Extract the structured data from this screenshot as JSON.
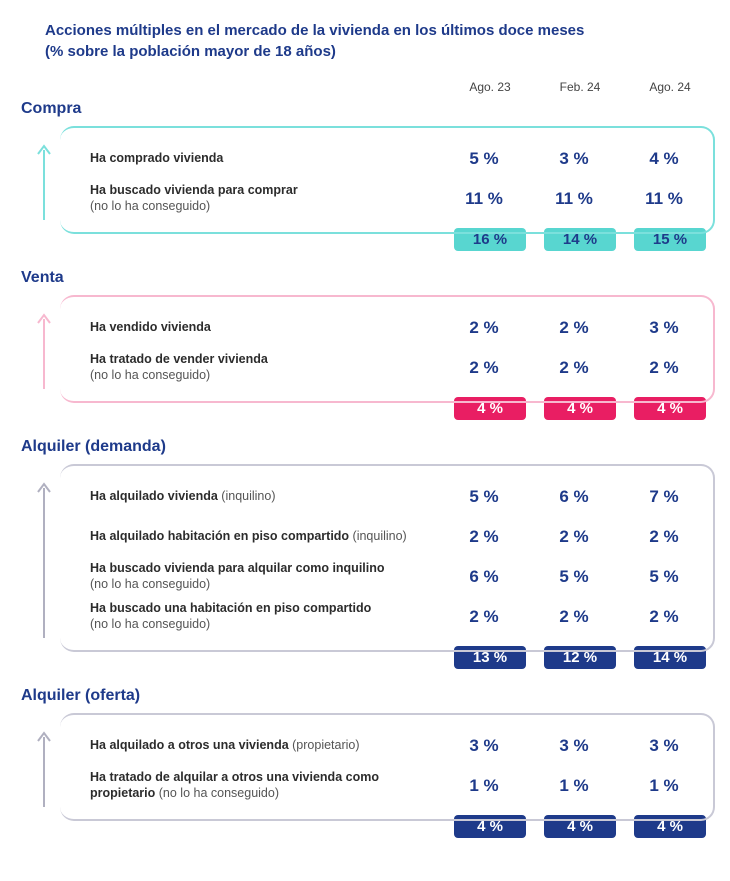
{
  "title_line1": "Acciones múltiples en el mercado de la vivienda en los últimos doce meses",
  "title_line2": "(% sobre la población mayor de 18 años)",
  "columns": [
    "Ago. 23",
    "Feb. 24",
    "Ago. 24"
  ],
  "colors": {
    "title": "#1e3a8a",
    "value_text": "#1e3a8a"
  },
  "sections": [
    {
      "key": "compra",
      "title": "Compra",
      "title_color": "#1e3a8a",
      "border_color": "#7be0dc",
      "arrow_color": "#7be0dc",
      "total_bg": "#58d6d0",
      "total_text": "#1e3a8a",
      "rows": [
        {
          "label": "Ha comprado vivienda",
          "sub": "",
          "vals": [
            "5 %",
            "3 %",
            "4 %"
          ]
        },
        {
          "label": "Ha buscado vivienda para comprar",
          "sub": "(no lo ha conseguido)",
          "vals": [
            "11 %",
            "11 %",
            "11 %"
          ]
        }
      ],
      "totals": [
        "16 %",
        "14 %",
        "15 %"
      ]
    },
    {
      "key": "venta",
      "title": "Venta",
      "title_color": "#1e3a8a",
      "border_color": "#f7b8cf",
      "arrow_color": "#f7b8cf",
      "total_bg": "#e91e63",
      "total_text": "#ffffff",
      "rows": [
        {
          "label": "Ha vendido vivienda",
          "sub": "",
          "vals": [
            "2 %",
            "2 %",
            "3 %"
          ]
        },
        {
          "label": "Ha tratado de vender vivienda",
          "sub": "(no lo ha conseguido)",
          "vals": [
            "2 %",
            "2 %",
            "2 %"
          ]
        }
      ],
      "totals": [
        "4 %",
        "4 %",
        "4 %"
      ]
    },
    {
      "key": "alq_demanda",
      "title": "Alquiler (demanda)",
      "title_color": "#1e3a8a",
      "border_color": "#c9c9d6",
      "arrow_color": "#b0b0c0",
      "total_bg": "#1e3a8a",
      "total_text": "#ffffff",
      "rows": [
        {
          "label": "Ha alquilado vivienda <span class='sub'>(inquilino)</span>",
          "sub": "",
          "vals": [
            "5 %",
            "6 %",
            "7 %"
          ]
        },
        {
          "label": "Ha alquilado habitación en piso compartido <span class='sub'>(inquilino)</span>",
          "sub": "",
          "vals": [
            "2 %",
            "2 %",
            "2 %"
          ]
        },
        {
          "label": "Ha buscado vivienda para alquilar como inquilino",
          "sub": "(no lo ha conseguido)",
          "vals": [
            "6 %",
            "5 %",
            "5 %"
          ]
        },
        {
          "label": "Ha buscado una habitación en piso compartido",
          "sub": "(no lo ha conseguido)",
          "vals": [
            "2 %",
            "2 %",
            "2 %"
          ]
        }
      ],
      "totals": [
        "13 %",
        "12 %",
        "14 %"
      ]
    },
    {
      "key": "alq_oferta",
      "title": "Alquiler (oferta)",
      "title_color": "#1e3a8a",
      "border_color": "#c9c9d6",
      "arrow_color": "#b0b0c0",
      "total_bg": "#1e3a8a",
      "total_text": "#ffffff",
      "rows": [
        {
          "label": "Ha alquilado a otros una vivienda <span class='sub'>(propietario)</span>",
          "sub": "",
          "vals": [
            "3 %",
            "3 %",
            "3 %"
          ]
        },
        {
          "label": "Ha tratado de alquilar a otros una vivienda como propietario <span class='sub'>(no lo ha conseguido)</span>",
          "sub": "",
          "vals": [
            "1 %",
            "1 %",
            "1 %"
          ]
        }
      ],
      "totals": [
        "4 %",
        "4 %",
        "4 %"
      ]
    }
  ]
}
